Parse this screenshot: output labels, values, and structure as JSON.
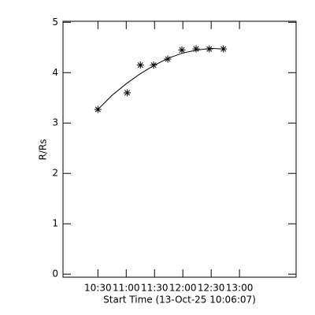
{
  "chart_data": {
    "type": "scatter",
    "ylabel": "R/Rs",
    "xlabel": "Start Time (13-Oct-25 10:06:07)",
    "x": [
      "10:30",
      "11:01",
      "11:15",
      "11:29",
      "11:44",
      "11:59",
      "12:14",
      "12:28",
      "12:43"
    ],
    "values": [
      3.27,
      3.6,
      4.15,
      4.15,
      4.27,
      4.45,
      4.47,
      4.47,
      4.47
    ],
    "fit": {
      "x": [
        "10:30",
        "10:45",
        "11:00",
        "11:15",
        "11:30",
        "11:45",
        "12:00",
        "12:15",
        "12:30",
        "12:43"
      ],
      "values": [
        3.27,
        3.55,
        3.78,
        3.98,
        4.15,
        4.29,
        4.39,
        4.45,
        4.48,
        4.47
      ]
    },
    "color": "#000000",
    "xlim": [
      "09:53",
      "14:00"
    ],
    "xticks": [
      "10:30",
      "11:00",
      "11:30",
      "12:00",
      "12:30",
      "13:00"
    ],
    "ylim": [
      -0.06,
      5.02
    ],
    "yticks": [
      0,
      1,
      2,
      3,
      4,
      5
    ]
  }
}
